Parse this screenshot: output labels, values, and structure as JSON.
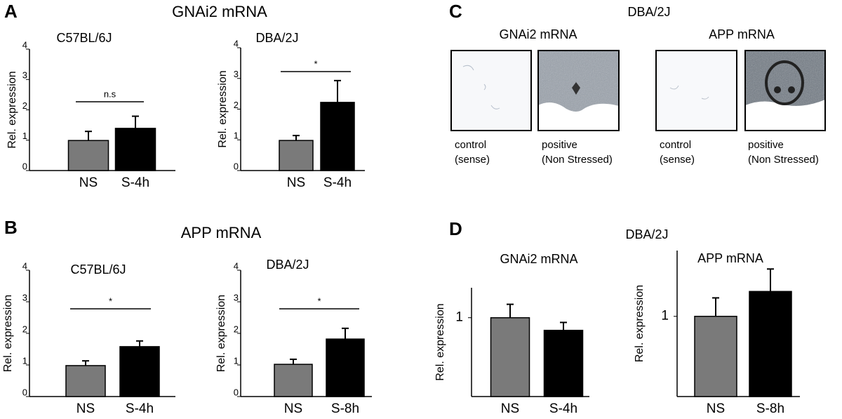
{
  "panel_labels": [
    "A",
    "B",
    "C",
    "D"
  ],
  "section_titles": [
    "GNAi2 mRNA",
    "APP mRNA",
    "DBA/2J",
    "DBA/2J"
  ],
  "images": {
    "titles": [
      "GNAi2 mRNA",
      "APP mRNA"
    ],
    "captions": [
      [
        "control",
        "(sense)"
      ],
      [
        "positive",
        "(Non Stressed)"
      ],
      [
        "control",
        "(sense)"
      ],
      [
        "positive",
        "(Non Stressed)"
      ]
    ]
  },
  "chart_data": [
    {
      "type": "bar",
      "title": "C57BL/6J",
      "y_label": "Rel. expression",
      "categories": [
        "NS",
        "S-4h"
      ],
      "values": [
        0.99,
        1.39
      ],
      "errors": [
        0.3,
        0.4
      ],
      "colors": [
        "#7a7a7a",
        "#000000"
      ],
      "ylim": [
        0,
        4
      ],
      "yticks": [
        0,
        1,
        2,
        3,
        4
      ],
      "annotation": "n.s"
    },
    {
      "type": "bar",
      "title": "DBA/2J",
      "y_label": "Rel. expression",
      "categories": [
        "NS",
        "S-4h"
      ],
      "values": [
        0.98,
        2.22
      ],
      "errors": [
        0.16,
        0.71
      ],
      "colors": [
        "#7a7a7a",
        "#000000"
      ],
      "ylim": [
        0,
        4
      ],
      "yticks": [
        0,
        1,
        2,
        3,
        4
      ],
      "annotation": "*"
    },
    {
      "type": "bar",
      "title": "C57BL/6J",
      "y_label": "Rel. expression",
      "categories": [
        "NS",
        "S-4h"
      ],
      "values": [
        0.98,
        1.58
      ],
      "errors": [
        0.15,
        0.18
      ],
      "colors": [
        "#7a7a7a",
        "#000000"
      ],
      "ylim": [
        0,
        4
      ],
      "yticks": [
        0,
        1,
        2,
        3,
        4
      ],
      "annotation": "*"
    },
    {
      "type": "bar",
      "title": "DBA/2J",
      "y_label": "Rel. expression",
      "categories": [
        "NS",
        "S-8h"
      ],
      "values": [
        1.02,
        1.82
      ],
      "errors": [
        0.16,
        0.34
      ],
      "colors": [
        "#7a7a7a",
        "#000000"
      ],
      "ylim": [
        0,
        4
      ],
      "yticks": [
        0,
        1,
        2,
        3,
        4
      ],
      "annotation": "*"
    },
    {
      "type": "bar",
      "title": "GNAi2 mRNA",
      "y_label": "Rel. expression",
      "categories": [
        "NS",
        "S-4h"
      ],
      "values": [
        1.0,
        0.84
      ],
      "errors": [
        0.17,
        0.1
      ],
      "colors": [
        "#7a7a7a",
        "#000000"
      ],
      "ylim": [
        0,
        1.38
      ],
      "yticks": [
        1
      ]
    },
    {
      "type": "bar",
      "title": "APP mRNA",
      "y_label": "Rel. expression",
      "categories": [
        "NS",
        "S-8h"
      ],
      "values": [
        1.0,
        1.31
      ],
      "errors": [
        0.23,
        0.28
      ],
      "colors": [
        "#7a7a7a",
        "#000000"
      ],
      "ylim": [
        0,
        1.82
      ],
      "yticks": [
        1
      ]
    }
  ]
}
